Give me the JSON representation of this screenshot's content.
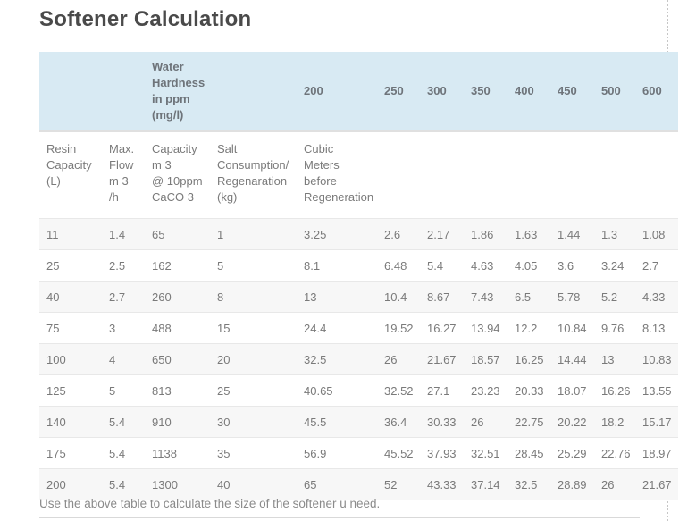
{
  "page": {
    "title": "Softener Calculation",
    "footer_note": "Use the above table to calculate the size of the softener u need."
  },
  "colors": {
    "hardness_header_bg": "#d8eaf3",
    "row_stripe_bg": "#f7f7f7",
    "row_border": "#e8e8e8",
    "title_text": "#4a4a4a",
    "body_text": "#7a7a7a",
    "guide_line": "#c6c6c6"
  },
  "chart_data": {
    "type": "table",
    "title": "Softener Calculation",
    "hardness_label": "Water\nHardness\nin ppm\n(mg/l)",
    "hardness_values": [
      "200",
      "250",
      "300",
      "350",
      "400",
      "450",
      "500",
      "600"
    ],
    "column_headers": [
      "Resin\nCapacity\n(L)",
      "Max.\nFlow\nm 3\n/h",
      "Capacity\nm 3\n@ 10ppm\nCaCO 3",
      "Salt\nConsumption/\nRegenaration\n(kg)",
      "Cubic\nMeters\nbefore\nRegeneration"
    ],
    "rows": [
      [
        "11",
        "1.4",
        "65",
        "1",
        "3.25",
        "2.6",
        "2.17",
        "1.86",
        "1.63",
        "1.44",
        "1.3",
        "1.08"
      ],
      [
        "25",
        "2.5",
        "162",
        "5",
        "8.1",
        "6.48",
        "5.4",
        "4.63",
        "4.05",
        "3.6",
        "3.24",
        "2.7"
      ],
      [
        "40",
        "2.7",
        "260",
        "8",
        "13",
        "10.4",
        "8.67",
        "7.43",
        "6.5",
        "5.78",
        "5.2",
        "4.33"
      ],
      [
        "75",
        "3",
        "488",
        "15",
        "24.4",
        "19.52",
        "16.27",
        "13.94",
        "12.2",
        "10.84",
        "9.76",
        "8.13"
      ],
      [
        "100",
        "4",
        "650",
        "20",
        "32.5",
        "26",
        "21.67",
        "18.57",
        "16.25",
        "14.44",
        "13",
        "10.83"
      ],
      [
        "125",
        "5",
        "813",
        "25",
        "40.65",
        "32.52",
        "27.1",
        "23.23",
        "20.33",
        "18.07",
        "16.26",
        "13.55"
      ],
      [
        "140",
        "5.4",
        "910",
        "30",
        "45.5",
        "36.4",
        "30.33",
        "26",
        "22.75",
        "20.22",
        "18.2",
        "15.17"
      ],
      [
        "175",
        "5.4",
        "1138",
        "35",
        "56.9",
        "45.52",
        "37.93",
        "32.51",
        "28.45",
        "25.29",
        "22.76",
        "18.97"
      ],
      [
        "200",
        "5.4",
        "1300",
        "40",
        "65",
        "52",
        "43.33",
        "37.14",
        "32.5",
        "28.89",
        "26",
        "21.67"
      ]
    ]
  }
}
